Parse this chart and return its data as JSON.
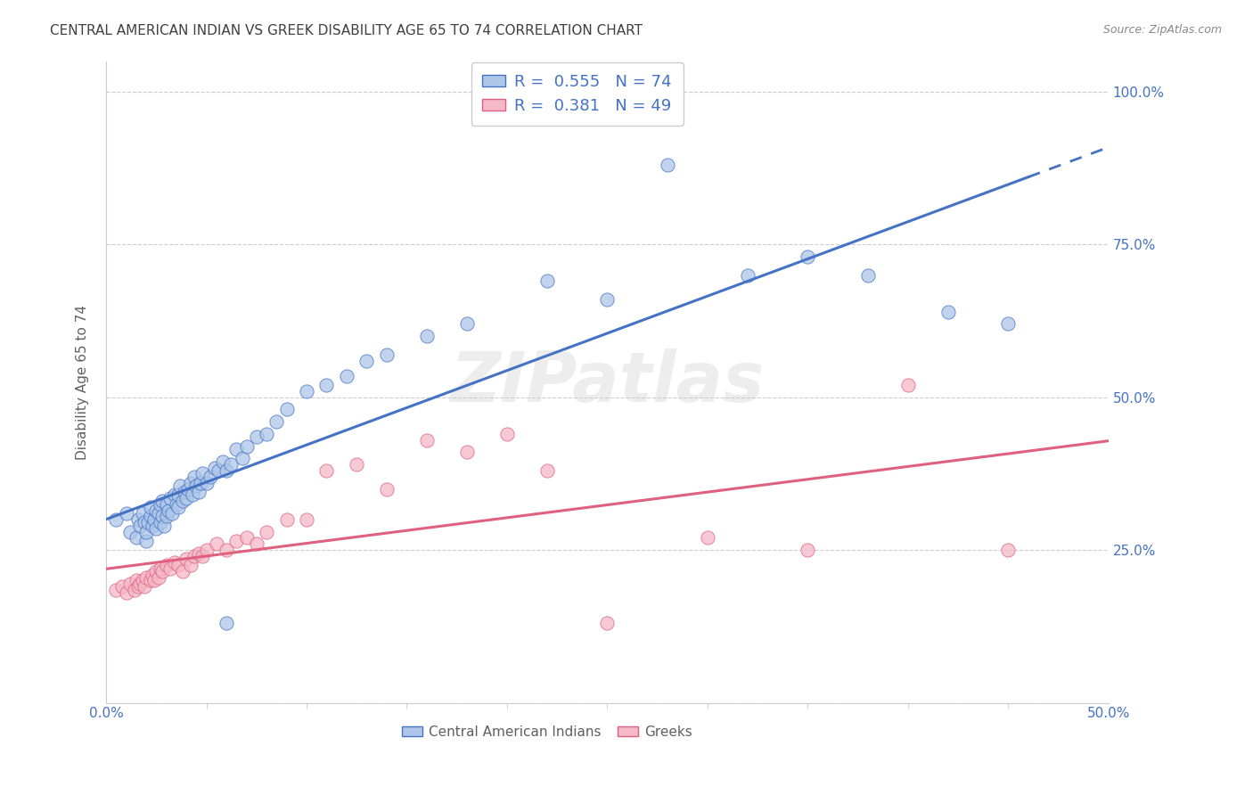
{
  "title": "CENTRAL AMERICAN INDIAN VS GREEK DISABILITY AGE 65 TO 74 CORRELATION CHART",
  "source": "Source: ZipAtlas.com",
  "ylabel": "Disability Age 65 to 74",
  "x_min": 0.0,
  "x_max": 0.5,
  "y_min": 0.0,
  "y_max": 1.05,
  "blue_R": 0.555,
  "blue_N": 74,
  "pink_R": 0.381,
  "pink_N": 49,
  "legend_label_blue": "Central American Indians",
  "legend_label_pink": "Greeks",
  "blue_scatter_x": [
    0.005,
    0.01,
    0.012,
    0.015,
    0.016,
    0.017,
    0.018,
    0.019,
    0.02,
    0.02,
    0.021,
    0.022,
    0.022,
    0.023,
    0.024,
    0.025,
    0.025,
    0.026,
    0.027,
    0.027,
    0.028,
    0.028,
    0.029,
    0.03,
    0.03,
    0.031,
    0.032,
    0.033,
    0.034,
    0.035,
    0.036,
    0.036,
    0.037,
    0.038,
    0.039,
    0.04,
    0.041,
    0.042,
    0.043,
    0.044,
    0.045,
    0.046,
    0.047,
    0.048,
    0.05,
    0.052,
    0.054,
    0.056,
    0.058,
    0.06,
    0.062,
    0.065,
    0.068,
    0.07,
    0.075,
    0.08,
    0.085,
    0.09,
    0.1,
    0.11,
    0.12,
    0.13,
    0.14,
    0.16,
    0.18,
    0.22,
    0.25,
    0.28,
    0.06,
    0.32,
    0.35,
    0.38,
    0.42,
    0.45
  ],
  "blue_scatter_y": [
    0.3,
    0.31,
    0.28,
    0.27,
    0.3,
    0.29,
    0.31,
    0.295,
    0.265,
    0.28,
    0.295,
    0.305,
    0.32,
    0.29,
    0.3,
    0.285,
    0.315,
    0.31,
    0.295,
    0.325,
    0.305,
    0.33,
    0.29,
    0.305,
    0.325,
    0.315,
    0.335,
    0.31,
    0.34,
    0.325,
    0.34,
    0.32,
    0.355,
    0.33,
    0.345,
    0.335,
    0.35,
    0.36,
    0.34,
    0.37,
    0.355,
    0.345,
    0.36,
    0.375,
    0.36,
    0.37,
    0.385,
    0.38,
    0.395,
    0.38,
    0.39,
    0.415,
    0.4,
    0.42,
    0.435,
    0.44,
    0.46,
    0.48,
    0.51,
    0.52,
    0.535,
    0.56,
    0.57,
    0.6,
    0.62,
    0.69,
    0.66,
    0.88,
    0.13,
    0.7,
    0.73,
    0.7,
    0.64,
    0.62
  ],
  "pink_scatter_x": [
    0.005,
    0.008,
    0.01,
    0.012,
    0.014,
    0.015,
    0.016,
    0.017,
    0.018,
    0.019,
    0.02,
    0.022,
    0.023,
    0.024,
    0.025,
    0.026,
    0.027,
    0.028,
    0.03,
    0.032,
    0.034,
    0.036,
    0.038,
    0.04,
    0.042,
    0.044,
    0.046,
    0.048,
    0.05,
    0.055,
    0.06,
    0.065,
    0.07,
    0.075,
    0.08,
    0.09,
    0.1,
    0.11,
    0.125,
    0.14,
    0.16,
    0.18,
    0.2,
    0.22,
    0.25,
    0.3,
    0.35,
    0.4,
    0.45
  ],
  "pink_scatter_y": [
    0.185,
    0.19,
    0.18,
    0.195,
    0.185,
    0.2,
    0.19,
    0.195,
    0.2,
    0.19,
    0.205,
    0.2,
    0.21,
    0.2,
    0.215,
    0.205,
    0.22,
    0.215,
    0.225,
    0.22,
    0.23,
    0.225,
    0.215,
    0.235,
    0.225,
    0.24,
    0.245,
    0.24,
    0.25,
    0.26,
    0.25,
    0.265,
    0.27,
    0.26,
    0.28,
    0.3,
    0.3,
    0.38,
    0.39,
    0.35,
    0.43,
    0.41,
    0.44,
    0.38,
    0.13,
    0.27,
    0.25,
    0.52,
    0.25
  ],
  "blue_line_color": "#4472c4",
  "pink_line_color": "#e06080",
  "blue_scatter_color": "#aec6e8",
  "pink_scatter_color": "#f4b8c8",
  "grid_color": "#cccccc",
  "background_color": "#ffffff",
  "title_color": "#404040",
  "source_color": "#888888",
  "axis_label_color": "#606060",
  "tick_color": "#4472c4",
  "blue_line_start": 0.0,
  "blue_line_end_solid": 0.46,
  "blue_line_end_dash": 0.5,
  "pink_line_start": 0.0,
  "pink_line_end": 0.5,
  "y_ticks": [
    0.0,
    0.25,
    0.5,
    0.75,
    1.0
  ],
  "y_tick_labels": [
    "",
    "25.0%",
    "50.0%",
    "75.0%",
    "100.0%"
  ]
}
